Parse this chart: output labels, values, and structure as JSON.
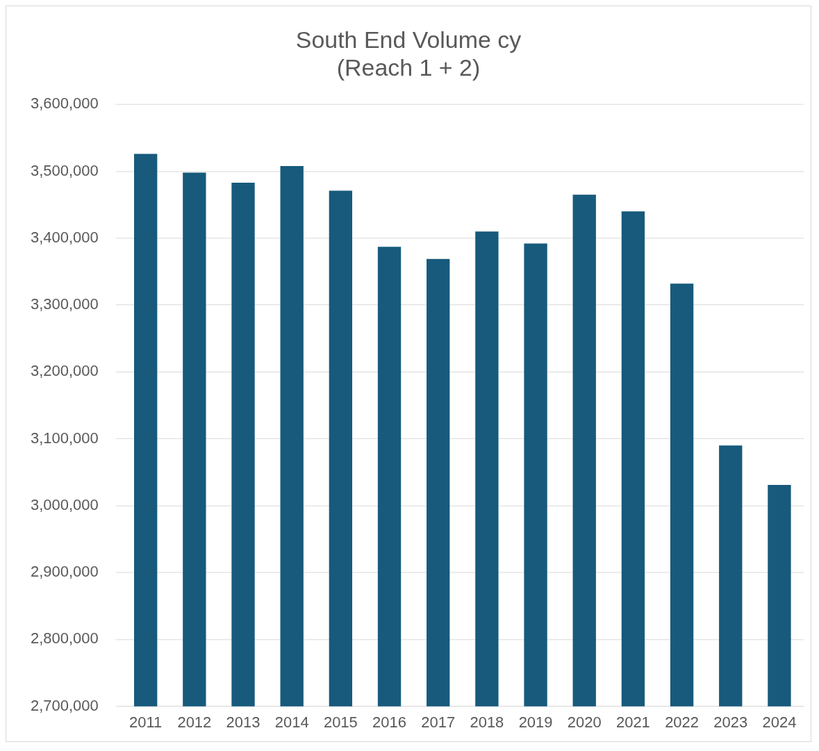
{
  "chart_data": {
    "type": "bar",
    "title": [
      "South End Volume cy",
      "(Reach 1 + 2)"
    ],
    "categories": [
      "2011",
      "2012",
      "2013",
      "2014",
      "2015",
      "2016",
      "2017",
      "2018",
      "2019",
      "2020",
      "2021",
      "2022",
      "2023",
      "2024"
    ],
    "values": [
      3526000,
      3498000,
      3483000,
      3508000,
      3471000,
      3387000,
      3369000,
      3410000,
      3392000,
      3465000,
      3440000,
      3332000,
      3090000,
      3031000
    ],
    "color": "#175a7c",
    "ylim": [
      2700000,
      3600000
    ],
    "yticks": [
      {
        "value": 2700000,
        "label": "2,700,000"
      },
      {
        "value": 2800000,
        "label": "2,800,000"
      },
      {
        "value": 2900000,
        "label": "2,900,000"
      },
      {
        "value": 3000000,
        "label": "3,000,000"
      },
      {
        "value": 3100000,
        "label": "3,100,000"
      },
      {
        "value": 3200000,
        "label": "3,200,000"
      },
      {
        "value": 3300000,
        "label": "3,300,000"
      },
      {
        "value": 3400000,
        "label": "3,400,000"
      },
      {
        "value": 3500000,
        "label": "3,500,000"
      },
      {
        "value": 3600000,
        "label": "3,600,000"
      }
    ],
    "grid": "y",
    "legend": false
  }
}
